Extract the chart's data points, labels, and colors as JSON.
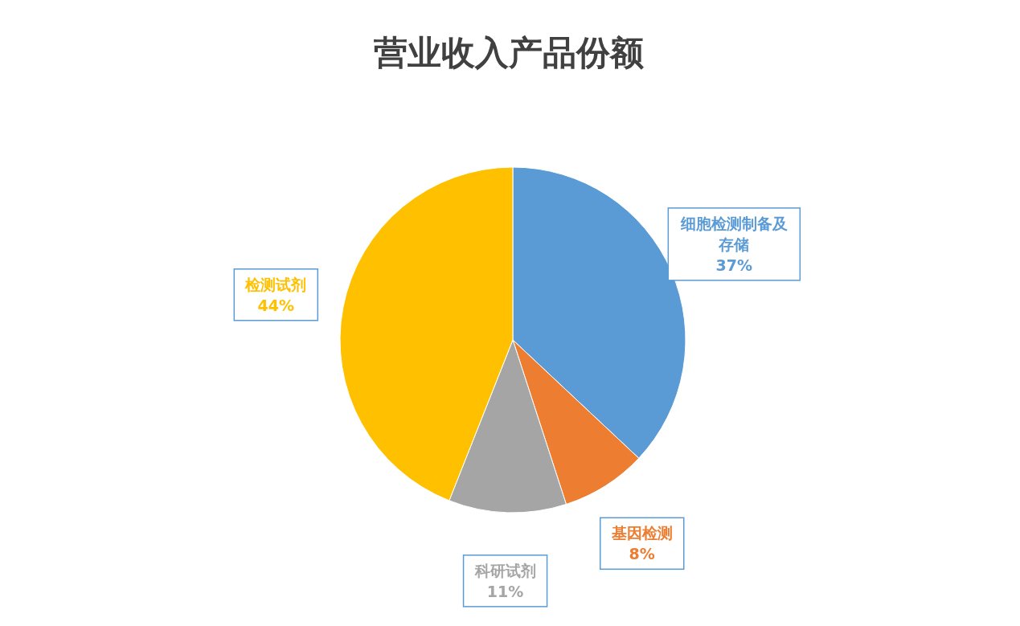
{
  "chart_data": {
    "type": "pie",
    "title": "营业收入产品份额",
    "categories": [
      "细胞检测制备及存储",
      "基因检测",
      "科研试剂",
      "检测试剂"
    ],
    "values": [
      37,
      8,
      11,
      44
    ],
    "colors": [
      "#5b9bd5",
      "#ed7d31",
      "#a5a5a5",
      "#ffc000"
    ],
    "value_labels": [
      "37%",
      "8%",
      "11%",
      "44%"
    ],
    "legend": false
  }
}
